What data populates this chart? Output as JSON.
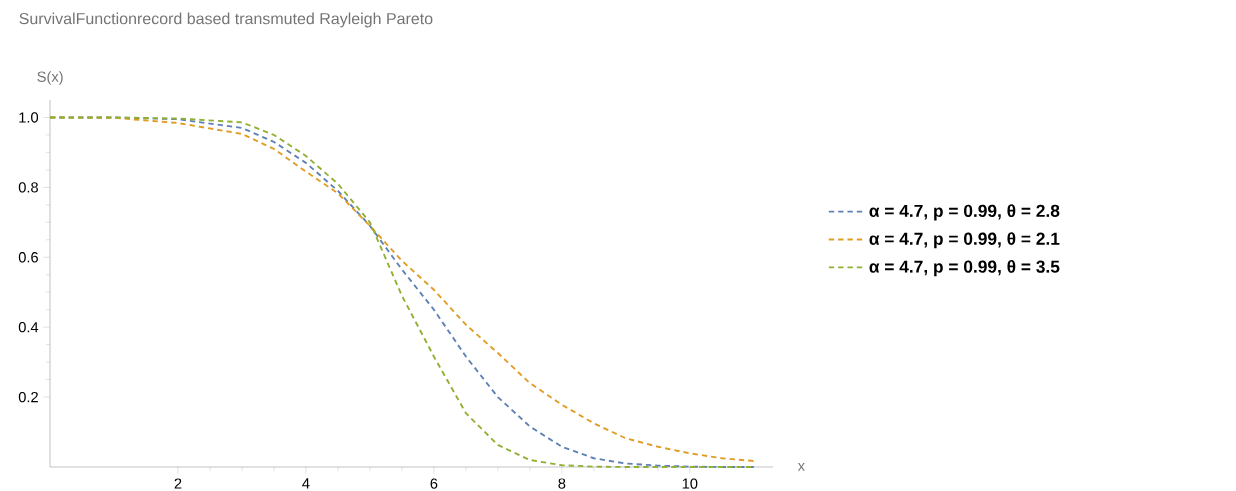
{
  "chart_data": {
    "type": "line",
    "title": "SurvivalFunctionrecord based transmuted Rayleigh Pareto",
    "xlabel": "x",
    "ylabel": "S(x)",
    "x": [
      0,
      1,
      2,
      3,
      3.5,
      4,
      4.5,
      5,
      5.5,
      6,
      6.5,
      7,
      7.5,
      8,
      8.5,
      9,
      9.5,
      10,
      10.5,
      11
    ],
    "series": [
      {
        "name": "α = 4.7, p = 0.99, θ = 2.8",
        "color": "#5e81b5",
        "values": [
          1,
          1,
          0.995,
          0.97,
          0.93,
          0.87,
          0.79,
          0.69,
          0.565,
          0.45,
          0.316,
          0.2,
          0.116,
          0.058,
          0.025,
          0.01,
          0.004,
          0.001,
          0,
          0
        ]
      },
      {
        "name": "α = 4.7, p = 0.99, θ = 2.1",
        "color": "#e19c24",
        "values": [
          1,
          0.999,
          0.984,
          0.953,
          0.91,
          0.845,
          0.783,
          0.69,
          0.59,
          0.507,
          0.407,
          0.326,
          0.24,
          0.178,
          0.125,
          0.082,
          0.058,
          0.039,
          0.025,
          0.017
        ]
      },
      {
        "name": "α = 4.7, p = 0.99, θ = 3.5",
        "color": "#8fb032",
        "values": [
          1,
          1,
          0.997,
          0.986,
          0.95,
          0.89,
          0.81,
          0.7,
          0.49,
          0.316,
          0.154,
          0.063,
          0.02,
          0.005,
          0.001,
          0,
          0,
          0,
          0,
          0
        ]
      }
    ],
    "xlim": [
      0,
      11.3
    ],
    "ylim": [
      0,
      1.05
    ],
    "xticks": [
      2,
      4,
      6,
      8,
      10
    ],
    "yticks": [
      0.2,
      0.4,
      0.6,
      0.8,
      {
        "value": 1,
        "label": "1.0"
      }
    ],
    "legend": "right",
    "line_style": "dashed"
  }
}
